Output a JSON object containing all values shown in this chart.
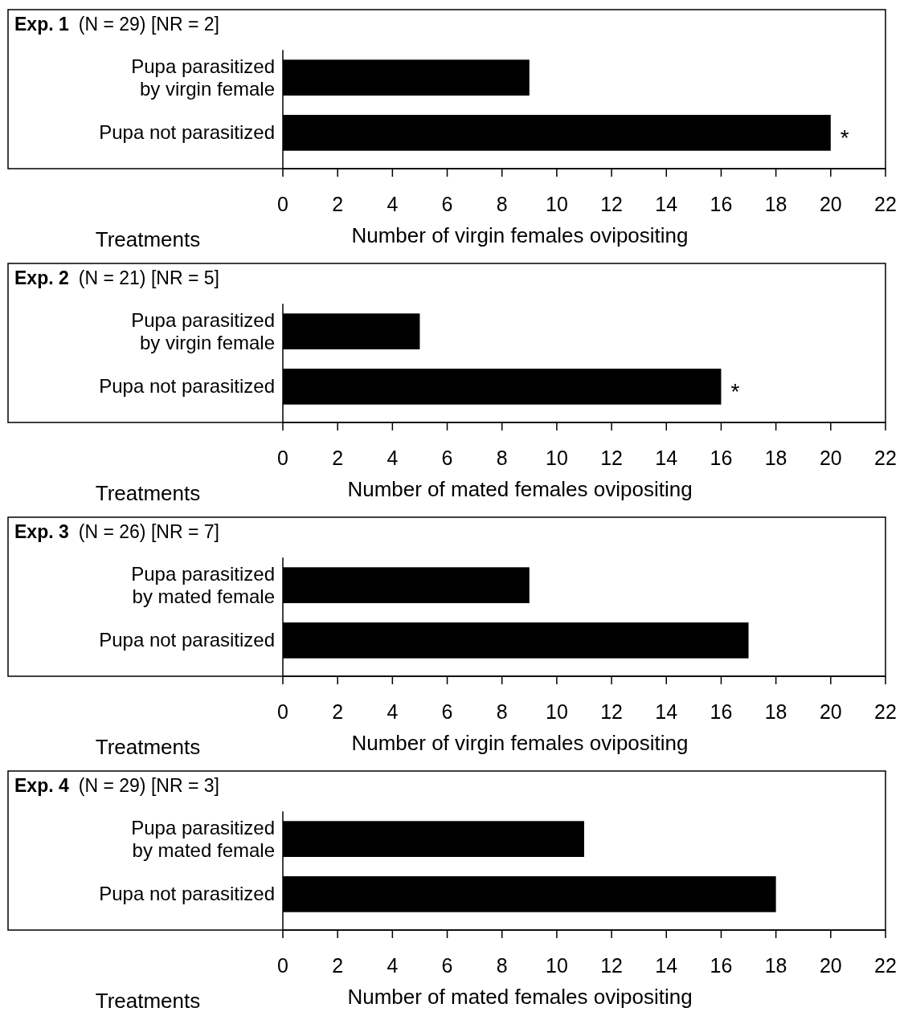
{
  "chart_data": [
    {
      "type": "bar",
      "orientation": "horizontal",
      "title": "Exp. 1",
      "subtitle": "(N = 29) [NR = 2]",
      "ylabel": "Treatments",
      "xlabel": "Number of virgin females ovipositing",
      "categories": [
        "Pupa parasitized\nby virgin female",
        "Pupa not parasitized"
      ],
      "values": [
        9,
        20
      ],
      "color": "#000000",
      "xlim": [
        0,
        22
      ],
      "xticks": [
        0,
        2,
        4,
        6,
        8,
        10,
        12,
        14,
        16,
        18,
        20,
        22
      ],
      "annotations": [
        {
          "text": "*",
          "x": 20,
          "y": "Pupa not parasitized"
        }
      ]
    },
    {
      "type": "bar",
      "orientation": "horizontal",
      "title": "Exp. 2",
      "subtitle": "(N = 21) [NR = 5]",
      "ylabel": "Treatments",
      "xlabel": "Number of mated females ovipositing",
      "categories": [
        "Pupa parasitized\nby virgin female",
        "Pupa not parasitized"
      ],
      "values": [
        5,
        16
      ],
      "color": "#000000",
      "xlim": [
        0,
        22
      ],
      "xticks": [
        0,
        2,
        4,
        6,
        8,
        10,
        12,
        14,
        16,
        18,
        20,
        22
      ],
      "annotations": [
        {
          "text": "*",
          "x": 16,
          "y": "Pupa not parasitized"
        }
      ]
    },
    {
      "type": "bar",
      "orientation": "horizontal",
      "title": "Exp. 3",
      "subtitle": "(N = 26) [NR = 7]",
      "ylabel": "Treatments",
      "xlabel": "Number of virgin females ovipositing",
      "categories": [
        "Pupa parasitized\nby mated female",
        "Pupa not parasitized"
      ],
      "values": [
        9,
        17
      ],
      "color": "#000000",
      "xlim": [
        0,
        22
      ],
      "xticks": [
        0,
        2,
        4,
        6,
        8,
        10,
        12,
        14,
        16,
        18,
        20,
        22
      ]
    },
    {
      "type": "bar",
      "orientation": "horizontal",
      "title": "Exp. 4",
      "subtitle": "(N = 29) [NR = 3]",
      "ylabel": "Treatments",
      "xlabel": "Number of mated females ovipositing",
      "categories": [
        "Pupa parasitized\nby mated female",
        "Pupa not parasitized"
      ],
      "values": [
        11,
        18
      ],
      "color": "#000000",
      "xlim": [
        0,
        22
      ],
      "xticks": [
        0,
        2,
        4,
        6,
        8,
        10,
        12,
        14,
        16,
        18,
        20,
        22
      ]
    }
  ]
}
